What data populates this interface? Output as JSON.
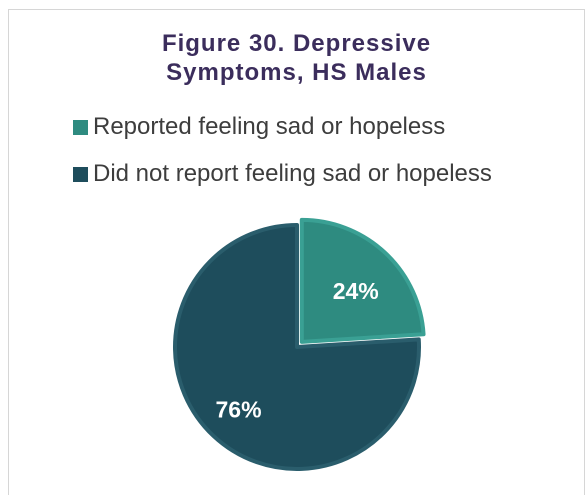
{
  "chart_data": {
    "type": "pie",
    "title": "Figure 30. Depressive Symptoms, HS Males",
    "title_lines": [
      "Figure 30. Depressive",
      "Symptoms, HS Males"
    ],
    "legend_placement": "top",
    "series": [
      {
        "name": "Reported feeling sad or hopeless",
        "value": 24,
        "label": "24%",
        "color": "#2e8b80"
      },
      {
        "name": "Did not report feeling sad or hopeless",
        "value": 76,
        "label": "76%",
        "color": "#1e4d5c"
      }
    ]
  }
}
